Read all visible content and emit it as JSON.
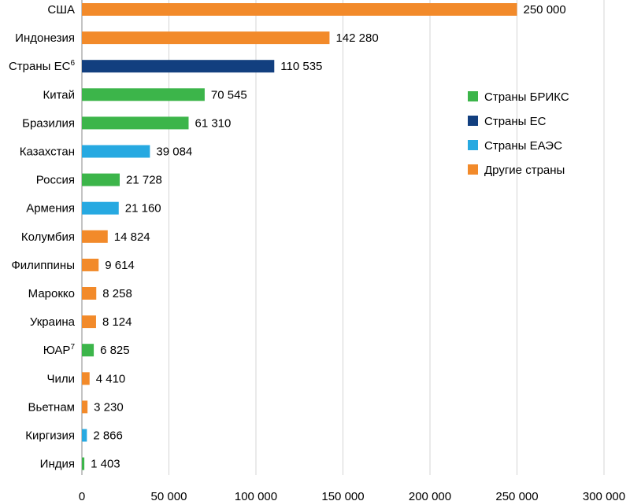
{
  "chart_data": {
    "type": "bar",
    "orientation": "horizontal",
    "title": "",
    "xlabel": "",
    "ylabel": "",
    "xlim": [
      0,
      300000
    ],
    "xticks": [
      0,
      50000,
      100000,
      150000,
      200000,
      250000,
      300000
    ],
    "xtick_labels": [
      "0",
      "50 000",
      "100 000",
      "150 000",
      "200 000",
      "250 000",
      "300 000"
    ],
    "grid": "vertical",
    "legend_position": "right",
    "groups": {
      "brics": {
        "name": "Страны БРИКС",
        "color": "#3cb54a"
      },
      "eu": {
        "name": "Страны ЕС",
        "color": "#123f7f"
      },
      "eaeu": {
        "name": "Страны ЕАЭС",
        "color": "#27a9e1"
      },
      "other": {
        "name": "Другие страны",
        "color": "#f28a2a"
      }
    },
    "legend_order": [
      "brics",
      "eu",
      "eaeu",
      "other"
    ],
    "bars": [
      {
        "category": "США",
        "sup": "",
        "value": 250000,
        "label": "250 000",
        "group": "other"
      },
      {
        "category": "Индонезия",
        "sup": "",
        "value": 142280,
        "label": "142 280",
        "group": "other"
      },
      {
        "category": "Страны ЕС",
        "sup": "6",
        "value": 110535,
        "label": "110 535",
        "group": "eu"
      },
      {
        "category": "Китай",
        "sup": "",
        "value": 70545,
        "label": "70 545",
        "group": "brics"
      },
      {
        "category": "Бразилия",
        "sup": "",
        "value": 61310,
        "label": "61 310",
        "group": "brics"
      },
      {
        "category": "Казахстан",
        "sup": "",
        "value": 39084,
        "label": "39 084",
        "group": "eaeu"
      },
      {
        "category": "Россия",
        "sup": "",
        "value": 21728,
        "label": "21 728",
        "group": "brics"
      },
      {
        "category": "Армения",
        "sup": "",
        "value": 21160,
        "label": "21 160",
        "group": "eaeu"
      },
      {
        "category": "Колумбия",
        "sup": "",
        "value": 14824,
        "label": "14 824",
        "group": "other"
      },
      {
        "category": "Филиппины",
        "sup": "",
        "value": 9614,
        "label": "9 614",
        "group": "other"
      },
      {
        "category": "Марокко",
        "sup": "",
        "value": 8258,
        "label": "8 258",
        "group": "other"
      },
      {
        "category": "Украина",
        "sup": "",
        "value": 8124,
        "label": "8 124",
        "group": "other"
      },
      {
        "category": "ЮАР",
        "sup": "7",
        "value": 6825,
        "label": "6 825",
        "group": "brics"
      },
      {
        "category": "Чили",
        "sup": "",
        "value": 4410,
        "label": "4 410",
        "group": "other"
      },
      {
        "category": "Вьетнам",
        "sup": "",
        "value": 3230,
        "label": "3 230",
        "group": "other"
      },
      {
        "category": "Киргизия",
        "sup": "",
        "value": 2866,
        "label": "2 866",
        "group": "eaeu"
      },
      {
        "category": "Индия",
        "sup": "",
        "value": 1403,
        "label": "1 403",
        "group": "brics"
      }
    ]
  }
}
